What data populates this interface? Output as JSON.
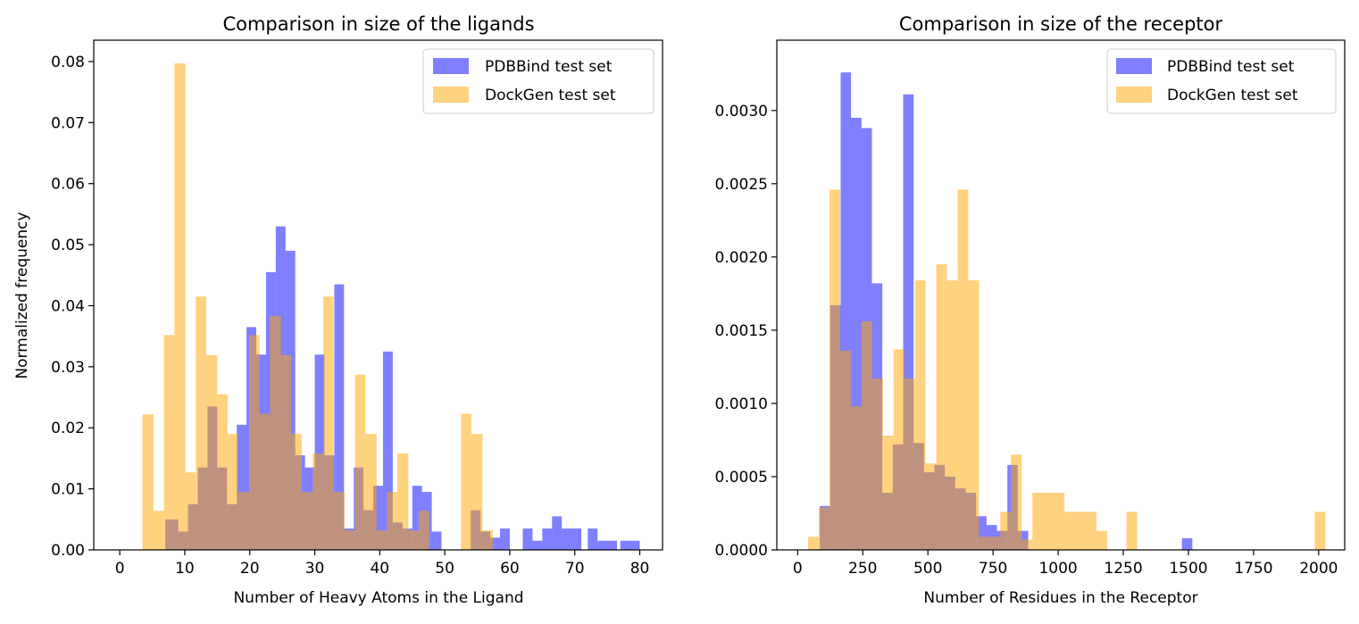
{
  "colors": {
    "pdbbind": "#0000ff",
    "dockgen": "#ffa500",
    "bar_opacity": 0.5
  },
  "chart_data": [
    {
      "type": "bar",
      "title": "Comparison in size of the ligands",
      "xlabel": "Number of Heavy Atoms in the Ligand",
      "ylabel": "Normalized frequency",
      "xlim": [
        -4,
        83.5
      ],
      "ylim": [
        0,
        0.0835
      ],
      "xticks": [
        0,
        10,
        20,
        30,
        40,
        50,
        60,
        70,
        80
      ],
      "yticks": [
        0.0,
        0.01,
        0.02,
        0.03,
        0.04,
        0.05,
        0.06,
        0.07,
        0.08
      ],
      "ytick_labels": [
        "0.00",
        "0.01",
        "0.02",
        "0.03",
        "0.04",
        "0.05",
        "0.06",
        "0.07",
        "0.08"
      ],
      "legend": [
        "PDBBind test set",
        "DockGen test set"
      ],
      "legend_position": "top-right",
      "series": [
        {
          "name": "PDBBind test set",
          "bins": [
            [
              7,
              9,
              0.005
            ],
            [
              9,
              10.5,
              0.003
            ],
            [
              10.5,
              12,
              0.0075
            ],
            [
              12,
              13.5,
              0.0135
            ],
            [
              13.5,
              15,
              0.0235
            ],
            [
              15,
              16.5,
              0.0135
            ],
            [
              16.5,
              18,
              0.0075
            ],
            [
              18,
              19.5,
              0.0205
            ],
            [
              19.5,
              21,
              0.0365
            ],
            [
              21,
              22.5,
              0.032
            ],
            [
              22.5,
              24,
              0.0455
            ],
            [
              24,
              25.5,
              0.053
            ],
            [
              25.5,
              27,
              0.049
            ],
            [
              27,
              28.5,
              0.0155
            ],
            [
              28.5,
              30,
              0.0135
            ],
            [
              30,
              31.5,
              0.032
            ],
            [
              31.5,
              33,
              0.0155
            ],
            [
              33,
              34.5,
              0.0435
            ],
            [
              34.5,
              36,
              0.0035
            ],
            [
              36,
              37.5,
              0.0135
            ],
            [
              37.5,
              39,
              0.0065
            ],
            [
              39,
              40.5,
              0.0105
            ],
            [
              40.5,
              42,
              0.0325
            ],
            [
              42,
              43.5,
              0.0045
            ],
            [
              43.5,
              45,
              0.0035
            ],
            [
              45,
              46.5,
              0.0105
            ],
            [
              46.5,
              48,
              0.0095
            ],
            [
              48,
              49.5,
              0.003
            ],
            [
              54,
              55.5,
              0.0065
            ],
            [
              55.5,
              57,
              0.003
            ],
            [
              57,
              58.5,
              0.002
            ],
            [
              58.5,
              60,
              0.0035
            ],
            [
              62,
              63.5,
              0.0035
            ],
            [
              63.5,
              65,
              0.0015
            ],
            [
              65,
              66.5,
              0.0035
            ],
            [
              66.5,
              68,
              0.0055
            ],
            [
              68,
              69.5,
              0.0035
            ],
            [
              69.5,
              71,
              0.0035
            ],
            [
              72,
              73.5,
              0.0035
            ],
            [
              73.5,
              75,
              0.0015
            ],
            [
              75,
              76.5,
              0.0015
            ],
            [
              77,
              78.5,
              0.0015
            ],
            [
              78.5,
              80,
              0.0015
            ]
          ]
        },
        {
          "name": "DockGen test set",
          "bins": [
            [
              3.5,
              5.2,
              0.0222
            ],
            [
              5.2,
              6.8,
              0.0064
            ],
            [
              6.8,
              8.4,
              0.0352
            ],
            [
              8.4,
              10.1,
              0.0797
            ],
            [
              10.1,
              11.7,
              0.0127
            ],
            [
              11.7,
              13.3,
              0.0415
            ],
            [
              13.3,
              15,
              0.0319
            ],
            [
              15,
              16.6,
              0.0255
            ],
            [
              16.6,
              18.2,
              0.019
            ],
            [
              18.2,
              19.9,
              0.0095
            ],
            [
              19.9,
              21.5,
              0.0352
            ],
            [
              21.5,
              23.1,
              0.0223
            ],
            [
              23.1,
              24.8,
              0.0383
            ],
            [
              24.8,
              26.4,
              0.0319
            ],
            [
              26.4,
              28,
              0.019
            ],
            [
              28,
              29.7,
              0.0095
            ],
            [
              29.7,
              31.3,
              0.0158
            ],
            [
              31.3,
              32.9,
              0.0415
            ],
            [
              32.9,
              34.6,
              0.0095
            ],
            [
              34.6,
              36.2,
              0.0032
            ],
            [
              36.2,
              37.8,
              0.0287
            ],
            [
              37.8,
              39.5,
              0.019
            ],
            [
              39.5,
              41.1,
              0.0032
            ],
            [
              41.1,
              42.7,
              0.0095
            ],
            [
              42.7,
              44.4,
              0.0158
            ],
            [
              44.4,
              46,
              0.0032
            ],
            [
              46,
              47.6,
              0.0064
            ],
            [
              52.5,
              54.1,
              0.0223
            ],
            [
              54.1,
              55.8,
              0.019
            ],
            [
              55.8,
              57.4,
              0.0032
            ]
          ]
        }
      ]
    },
    {
      "type": "bar",
      "title": "Comparison in size of the receptor",
      "xlabel": "Number of Residues in the Receptor",
      "ylabel": "",
      "xlim": [
        -80,
        2100
      ],
      "ylim": [
        0,
        0.00348
      ],
      "xticks": [
        0,
        250,
        500,
        750,
        1000,
        1250,
        1500,
        1750,
        2000
      ],
      "yticks": [
        0.0,
        0.0005,
        0.001,
        0.0015,
        0.002,
        0.0025,
        0.003
      ],
      "ytick_labels": [
        "0.0000",
        "0.0005",
        "0.0010",
        "0.0015",
        "0.0020",
        "0.0025",
        "0.0030"
      ],
      "legend": [
        "PDBBind test set",
        "DockGen test set"
      ],
      "legend_position": "top-right",
      "series": [
        {
          "name": "PDBBind test set",
          "bins": [
            [
              85,
              125,
              0.0003
            ],
            [
              125,
              165,
              0.00167
            ],
            [
              165,
              205,
              0.00326
            ],
            [
              205,
              245,
              0.00295
            ],
            [
              245,
              285,
              0.00288
            ],
            [
              285,
              325,
              0.00182
            ],
            [
              325,
              365,
              0.00039
            ],
            [
              365,
              405,
              0.00072
            ],
            [
              405,
              445,
              0.00311
            ],
            [
              445,
              485,
              0.00073
            ],
            [
              485,
              525,
              0.00053
            ],
            [
              525,
              565,
              0.00058
            ],
            [
              565,
              605,
              0.0005
            ],
            [
              605,
              645,
              0.00042
            ],
            [
              645,
              685,
              0.00039
            ],
            [
              685,
              725,
              0.00023
            ],
            [
              725,
              765,
              0.00017
            ],
            [
              765,
              805,
              0.00013
            ],
            [
              805,
              845,
              0.00058
            ],
            [
              845,
              885,
              0.00013
            ],
            [
              1475,
              1515,
              8e-05
            ]
          ]
        },
        {
          "name": "DockGen test set",
          "bins": [
            [
              40,
              81,
              9e-05
            ],
            [
              81,
              122,
              0.00029
            ],
            [
              122,
              163,
              0.00246
            ],
            [
              163,
              204,
              0.00136
            ],
            [
              204,
              245,
              0.00098
            ],
            [
              245,
              286,
              0.00156
            ],
            [
              286,
              327,
              0.00117
            ],
            [
              327,
              368,
              0.00078
            ],
            [
              368,
              409,
              0.00137
            ],
            [
              409,
              450,
              0.00117
            ],
            [
              450,
              491,
              0.00184
            ],
            [
              491,
              532,
              0.00059
            ],
            [
              532,
              573,
              0.00195
            ],
            [
              573,
              614,
              0.00184
            ],
            [
              614,
              655,
              0.00246
            ],
            [
              655,
              696,
              0.00184
            ],
            [
              696,
              737,
              9e-05
            ],
            [
              737,
              778,
              9e-05
            ],
            [
              778,
              819,
              0.00026
            ],
            [
              819,
              860,
              0.00065
            ],
            [
              860,
              901,
              7e-05
            ],
            [
              901,
              942,
              0.00039
            ],
            [
              942,
              983,
              0.00039
            ],
            [
              983,
              1024,
              0.00039
            ],
            [
              1024,
              1065,
              0.00026
            ],
            [
              1065,
              1106,
              0.00026
            ],
            [
              1106,
              1147,
              0.00026
            ],
            [
              1147,
              1188,
              0.00013
            ],
            [
              1262,
              1303,
              0.00026
            ],
            [
              1985,
              2026,
              0.00026
            ]
          ]
        }
      ]
    }
  ]
}
